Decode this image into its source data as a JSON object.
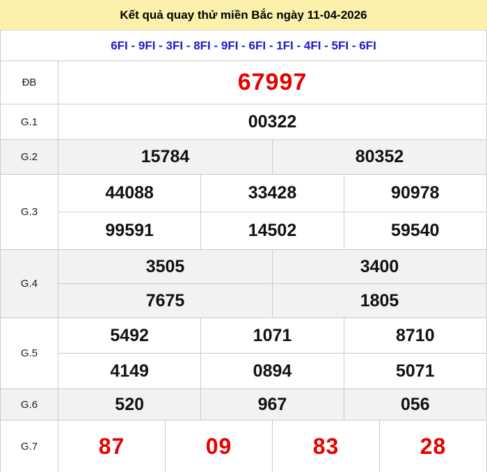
{
  "header": {
    "title": "Kết quả quay thử miền Bắc ngày 11-04-2026",
    "special_codes": "6FI - 9FI - 3FI - 8FI - 9FI - 6FI - 1FI - 4FI - 5FI - 6FI"
  },
  "results": {
    "db": {
      "label": "ĐB",
      "rows": [
        [
          "67997"
        ]
      ]
    },
    "g1": {
      "label": "G.1",
      "rows": [
        [
          "00322"
        ]
      ]
    },
    "g2": {
      "label": "G.2",
      "rows": [
        [
          "15784",
          "80352"
        ]
      ]
    },
    "g3": {
      "label": "G.3",
      "rows": [
        [
          "44088",
          "33428",
          "90978"
        ],
        [
          "99591",
          "14502",
          "59540"
        ]
      ]
    },
    "g4": {
      "label": "G.4",
      "rows": [
        [
          "3505",
          "3400"
        ],
        [
          "7675",
          "1805"
        ]
      ]
    },
    "g5": {
      "label": "G.5",
      "rows": [
        [
          "5492",
          "1071",
          "8710"
        ],
        [
          "4149",
          "0894",
          "5071"
        ]
      ]
    },
    "g6": {
      "label": "G.6",
      "rows": [
        [
          "520",
          "967",
          "056"
        ]
      ]
    },
    "g7": {
      "label": "G.7",
      "rows": [
        [
          "87",
          "09",
          "83",
          "28"
        ]
      ]
    }
  },
  "colors": {
    "header_bg": "#FBF0AC",
    "stripe_bg": "#F2F2F2",
    "border": "#CBCBCB",
    "special_number": "#E60000",
    "code_text": "#1A1ACD",
    "number_text": "#111111"
  }
}
